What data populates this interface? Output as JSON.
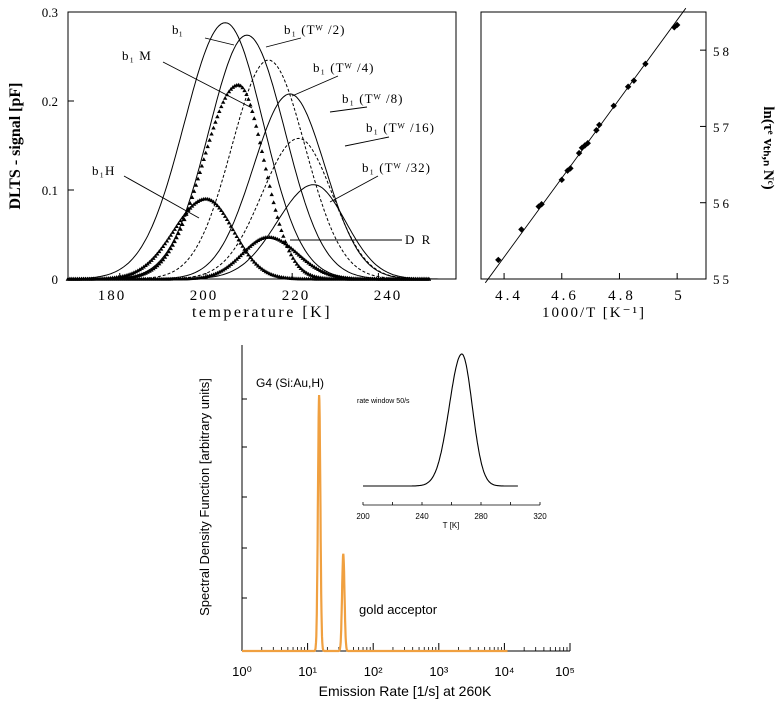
{
  "figure": {
    "dlts": {
      "ylabel": "DLTS - signal [pF]",
      "xlabel": "temperature [K]",
      "xticks": [
        "180",
        "200",
        "220",
        "240"
      ],
      "yticks": [
        "0",
        "0.1",
        "0.2",
        "0.3"
      ],
      "labels": {
        "b1": "b₁",
        "b1M": "b₁ M",
        "b1H": "b₁H",
        "b1_tw2": "b₁ (Tᵂ /2)",
        "b1_tw4": "b₁ (Tᵂ /4)",
        "b1_tw8": "b₁ (Tᵂ /8)",
        "b1_tw16": "b₁ (Tᵂ /16)",
        "b1_tw32": "b₁ (Tᵂ /32)",
        "dr": "D R"
      }
    },
    "arrhenius": {
      "xlabel": "1000/T [K⁻¹]",
      "ylabel": "ln(τᵉ vₜₕ,ₙ Nᶜ)",
      "xticks": [
        "4.4",
        "4.6",
        "4.8",
        "5"
      ],
      "yticks": [
        "55",
        "56",
        "57",
        "58"
      ]
    },
    "laplace": {
      "xlabel": "Emission Rate [1/s] at 260K",
      "ylabel": "Spectral Density Function [arbitrary units]",
      "xticks": [
        "10⁰",
        "10¹",
        "10²",
        "10³",
        "10⁴",
        "10⁵"
      ],
      "annotations": {
        "g4": "G4 (Si:Au,H)",
        "gold": "gold acceptor"
      },
      "inset": {
        "title": "rate window 50/s",
        "xlabel": "T [K]",
        "xticks": [
          "200",
          "240",
          "280",
          "320"
        ]
      }
    }
  },
  "chart_data": [
    {
      "type": "line",
      "title": "",
      "xlabel": "temperature [K]",
      "ylabel": "DLTS - signal [pF]",
      "xlim": [
        168,
        258
      ],
      "ylim": [
        0,
        0.3
      ],
      "grid": false,
      "series": [
        {
          "name": "b₁",
          "style": "solid",
          "peak_T": 204.5,
          "peak": 0.288,
          "sigma_low": 13.5,
          "sigma_high": 12.5
        },
        {
          "name": "b₁ (Tᵂ /2)",
          "style": "solid",
          "peak_T": 209.5,
          "peak": 0.274,
          "sigma_low": 12.5,
          "sigma_high": 12.5
        },
        {
          "name": "b₁ (Tᵂ /4)",
          "style": "dashed",
          "peak_T": 214.5,
          "peak": 0.246,
          "sigma_low": 12.0,
          "sigma_high": 12.0
        },
        {
          "name": "b₁ (Tᵂ /8)",
          "style": "solid",
          "peak_T": 219.5,
          "peak": 0.208,
          "sigma_low": 12.0,
          "sigma_high": 11.5
        },
        {
          "name": "b₁ (Tᵂ /16)",
          "style": "dashed",
          "peak_T": 221.5,
          "peak": 0.158,
          "sigma_low": 12.0,
          "sigma_high": 11.0
        },
        {
          "name": "b₁ (Tᵂ /32)",
          "style": "solid",
          "peak_T": 225.0,
          "peak": 0.106,
          "sigma_low": 12.0,
          "sigma_high": 10.5
        },
        {
          "name": "b₁ M",
          "style": "markers",
          "peak_T": 207.5,
          "peak": 0.218,
          "sigma_low": 11.5,
          "sigma_high": 8.5
        },
        {
          "name": "b₁H",
          "style": "markers",
          "peak_T": 200.0,
          "peak": 0.09,
          "sigma_low": 10.5,
          "sigma_high": 9.0
        },
        {
          "name": "D R",
          "style": "markers",
          "peak_T": 214.5,
          "peak": 0.047,
          "sigma_low": 8.5,
          "sigma_high": 9.5
        }
      ]
    },
    {
      "type": "scatter",
      "title": "",
      "xlabel": "1000/T [K⁻¹]",
      "ylabel": "ln(τᵉ vₜₕ,ₙ Nᶜ)",
      "xlim": [
        4.32,
        5.1
      ],
      "ylim": [
        55,
        58.5
      ],
      "fit_line": {
        "x": [
          4.335,
          5.03
        ],
        "y": [
          54.95,
          58.55
        ]
      },
      "x": [
        4.38,
        4.46,
        4.52,
        4.53,
        4.6,
        4.62,
        4.63,
        4.66,
        4.67,
        4.68,
        4.69,
        4.72,
        4.73,
        4.78,
        4.83,
        4.85,
        4.89,
        4.99,
        5.0
      ],
      "y": [
        55.25,
        55.65,
        55.95,
        55.98,
        56.3,
        56.42,
        56.45,
        56.65,
        56.72,
        56.75,
        56.78,
        56.95,
        57.02,
        57.27,
        57.52,
        57.6,
        57.82,
        58.3,
        58.33
      ]
    },
    {
      "type": "line",
      "title": "",
      "xlabel": "Emission Rate [1/s] at 260K",
      "ylabel": "Spectral Density Function [arbitrary units]",
      "xscale": "log",
      "xlim": [
        1,
        100000
      ],
      "peaks": [
        {
          "label": "G4 (Si:Au,H)",
          "rate": 15,
          "height": 1.0
        },
        {
          "label": "gold acceptor",
          "rate": 35,
          "height": 0.38
        }
      ],
      "color": "#f0a040"
    },
    {
      "type": "line",
      "title": "rate window 50/s",
      "xlabel": "T [K]",
      "xlim": [
        200,
        320
      ],
      "peak_T": 267,
      "baseline": 0.1
    }
  ]
}
